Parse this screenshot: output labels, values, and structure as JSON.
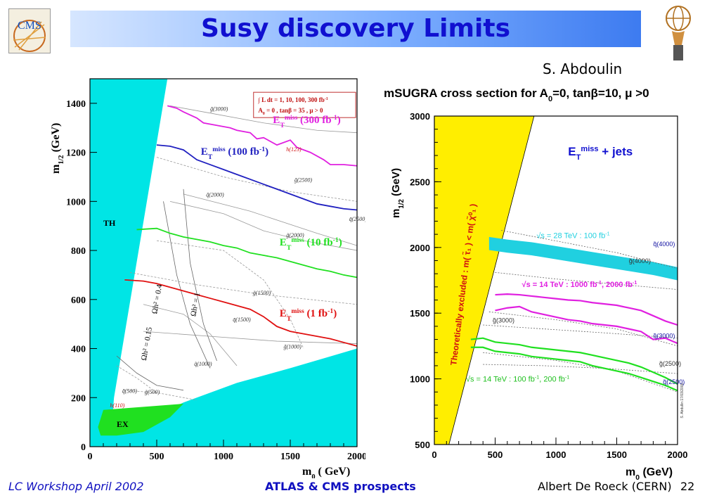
{
  "slide": {
    "title": "Susy discovery Limits",
    "author": "S. Abdoulin",
    "footer_left": "LC Workshop  April 2002",
    "footer_center": "ATLAS & CMS prospects",
    "footer_right": "Albert De Roeck (CERN)",
    "page_number": "22",
    "logo_left_text": "CMS",
    "accent_color": "#1010d0"
  },
  "chart_data": [
    {
      "type": "line",
      "xlabel": "m",
      "xlabel_sub": "0",
      "xlabel_unit": "( GeV)",
      "ylabel": "m",
      "ylabel_sub": "1/2",
      "ylabel_unit": "(GeV)",
      "xlim": [
        0,
        2000
      ],
      "ylim": [
        0,
        1500
      ],
      "x_ticks": [
        "0",
        "500",
        "1000",
        "1500",
        "2000"
      ],
      "y_ticks": [
        "0",
        "200",
        "400",
        "600",
        "800",
        "1000",
        "1200",
        "1400"
      ],
      "legend_box": {
        "line1": "∫ L dt = 1, 10, 100, 300  fb",
        "line1_sup": "-1",
        "line2": "A",
        "line2_sub": "0",
        "line2_rest": " = 0 ,  tanβ = 35 ,  μ > 0"
      },
      "region_labels": {
        "th": "TH",
        "ex": "EX"
      },
      "series": [
        {
          "name": "300 fb-1",
          "label_main": "E",
          "label_sub": "T",
          "label_sup": "miss",
          "label_rest": " (300 fb",
          "label_exp": "-1",
          "label_close": ")",
          "color": "#e020e0",
          "x": [
            580,
            650,
            700,
            800,
            850,
            950,
            1050,
            1100,
            1200,
            1250,
            1300,
            1400,
            1500,
            1550,
            1650,
            1750,
            1800,
            1900,
            2000
          ],
          "y": [
            1390,
            1380,
            1365,
            1340,
            1320,
            1310,
            1300,
            1290,
            1280,
            1255,
            1260,
            1230,
            1250,
            1220,
            1200,
            1170,
            1150,
            1150,
            1145
          ]
        },
        {
          "name": "100 fb-1",
          "label_main": "E",
          "label_sub": "T",
          "label_sup": "miss",
          "label_rest": " (100 fb",
          "label_exp": "-1",
          "label_close": ")",
          "color": "#2020c0",
          "x": [
            500,
            600,
            700,
            750,
            800,
            900,
            1000,
            1100,
            1200,
            1300,
            1400,
            1500,
            1600,
            1700,
            1800,
            1900,
            2000
          ],
          "y": [
            1230,
            1225,
            1210,
            1190,
            1170,
            1150,
            1130,
            1110,
            1090,
            1070,
            1050,
            1030,
            1010,
            990,
            980,
            970,
            965
          ]
        },
        {
          "name": "10 fb-1",
          "label_main": "E",
          "label_sub": "T",
          "label_sup": "miss",
          "label_rest": " (10 fb",
          "label_exp": "-1",
          "label_close": ")",
          "color": "#20e020",
          "x": [
            350,
            500,
            600,
            700,
            800,
            900,
            1000,
            1100,
            1200,
            1300,
            1400,
            1500,
            1600,
            1700,
            1800,
            1900,
            2000
          ],
          "y": [
            885,
            890,
            870,
            855,
            845,
            835,
            820,
            810,
            790,
            780,
            770,
            755,
            740,
            725,
            715,
            700,
            690
          ]
        },
        {
          "name": "1 fb-1",
          "label_main": "E",
          "label_sub": "T",
          "label_sup": "miss",
          "label_rest": " (1 fb",
          "label_exp": "-1",
          "label_close": ")",
          "color": "#e01010",
          "x": [
            260,
            400,
            500,
            600,
            700,
            800,
            900,
            1000,
            1100,
            1200,
            1300,
            1400,
            1500,
            1600,
            1700,
            1800,
            1900,
            2000
          ],
          "y": [
            680,
            675,
            665,
            650,
            635,
            620,
            605,
            590,
            575,
            560,
            530,
            490,
            470,
            460,
            450,
            440,
            425,
            410
          ]
        }
      ],
      "contour_labels": [
        {
          "text": "g̃(3000)"
        },
        {
          "text": "h(123)"
        },
        {
          "text": "g̃(2500)"
        },
        {
          "text": "q̃(2500)"
        },
        {
          "text": "q̃(2000)"
        },
        {
          "text": "g̃(2000)"
        },
        {
          "text": "g̃(1500)"
        },
        {
          "text": "q̃(1500)"
        },
        {
          "text": "g̃(1000)"
        },
        {
          "text": "q̃(1000)"
        },
        {
          "text": "q̃(500)"
        },
        {
          "text": "g̃(500)"
        },
        {
          "text": "h(110)"
        }
      ],
      "omega_labels": [
        {
          "text": "Ωh² = 0.4"
        },
        {
          "text": "Ωh² = 1"
        },
        {
          "text": "Ωh² = 0.15"
        }
      ],
      "colors": {
        "excluded": "#00e5e5",
        "ex": "#20e020"
      }
    },
    {
      "type": "line",
      "title": "mSUGRA  cross  section  for  A",
      "title_sub": "0",
      "title_rest": "=0,  tanβ=10,  μ >0",
      "xlabel": "m",
      "xlabel_sub": "0",
      "xlabel_unit": "(GeV)",
      "ylabel": "m",
      "ylabel_sub": "1/2",
      "ylabel_unit": "(GeV)",
      "xlim": [
        0,
        2000
      ],
      "ylim": [
        500,
        3000
      ],
      "x_ticks": [
        "0",
        "500",
        "1000",
        "1500",
        "2000"
      ],
      "y_ticks": [
        "500",
        "1000",
        "1500",
        "2000",
        "2500",
        "3000"
      ],
      "annotation": {
        "main": "E",
        "sub": "T",
        "sup": "miss",
        "rest": "  +  jets"
      },
      "excluded_label": "Theoretically excluded   :   m( τ̃₁ ) < m( χ̃⁰₁ )",
      "side_note": "S. Abdullin  17/03/2000",
      "series": [
        {
          "name": "√s = 28 TeV : 100 fb-1",
          "label": "√s = 28 TeV : 100 fb",
          "label_exp": "-1",
          "color": "#20d0e0",
          "x": [
            450,
            600,
            800,
            1000,
            1200,
            1400,
            1600,
            1800,
            2000
          ],
          "y": [
            2030,
            2010,
            1990,
            1960,
            1930,
            1900,
            1870,
            1840,
            1800
          ]
        },
        {
          "name": "√s = 14 TeV : 2000 fb-1",
          "color": "#e020e0",
          "x": [
            500,
            600,
            700,
            800,
            900,
            1000,
            1100,
            1200,
            1300,
            1400,
            1500,
            1600,
            1700,
            1800,
            1900,
            2000
          ],
          "y": [
            1640,
            1645,
            1640,
            1630,
            1620,
            1610,
            1600,
            1595,
            1580,
            1570,
            1560,
            1540,
            1520,
            1480,
            1440,
            1410
          ]
        },
        {
          "name": "√s = 14 TeV : 1000 fb-1",
          "color": "#e020e0",
          "x": [
            500,
            600,
            700,
            800,
            900,
            1000,
            1100,
            1200,
            1300,
            1400,
            1500,
            1600,
            1700,
            1800,
            1900,
            2000
          ],
          "y": [
            1520,
            1540,
            1550,
            1510,
            1490,
            1470,
            1450,
            1440,
            1420,
            1410,
            1400,
            1380,
            1360,
            1300,
            1310,
            1270
          ]
        },
        {
          "name": "√s = 14 TeV : 200 fb-1",
          "color": "#20e020",
          "x": [
            300,
            400,
            500,
            600,
            700,
            800,
            900,
            1000,
            1100,
            1200,
            1300,
            1400,
            1500,
            1600,
            1700,
            1800,
            1900,
            2000
          ],
          "y": [
            1300,
            1310,
            1280,
            1270,
            1260,
            1240,
            1230,
            1220,
            1210,
            1200,
            1180,
            1160,
            1140,
            1120,
            1090,
            1050,
            1010,
            960
          ]
        },
        {
          "name": "√s = 14 TeV : 100 fb-1",
          "color": "#20e020",
          "x": [
            300,
            400,
            500,
            600,
            700,
            800,
            900,
            1000,
            1100,
            1200,
            1300,
            1400,
            1500,
            1600,
            1700,
            1800,
            1900,
            2000
          ],
          "y": [
            1240,
            1240,
            1210,
            1200,
            1190,
            1170,
            1160,
            1150,
            1140,
            1130,
            1100,
            1080,
            1060,
            1040,
            1010,
            980,
            950,
            910
          ]
        }
      ],
      "label_1000_2000": {
        "text": "√s = 14 TeV : 1000 fb",
        "exp": "-1",
        "tail": ",  2000 fb",
        "exp2": "-1"
      },
      "label_100_200": {
        "text": "√s = 14 TeV : 100 fb",
        "exp": "-1",
        "tail": ",  200 fb",
        "exp2": "-1"
      },
      "contour_labels": [
        {
          "text": "q̃(4000)"
        },
        {
          "text": "g̃(4000)"
        },
        {
          "text": "g̃(3000)"
        },
        {
          "text": "q̃(3000)"
        },
        {
          "text": "g̃(2500)"
        },
        {
          "text": "q̃(2500)"
        }
      ],
      "colors": {
        "excluded": "#ffee00",
        "annotation": "#1010d0"
      }
    }
  ]
}
